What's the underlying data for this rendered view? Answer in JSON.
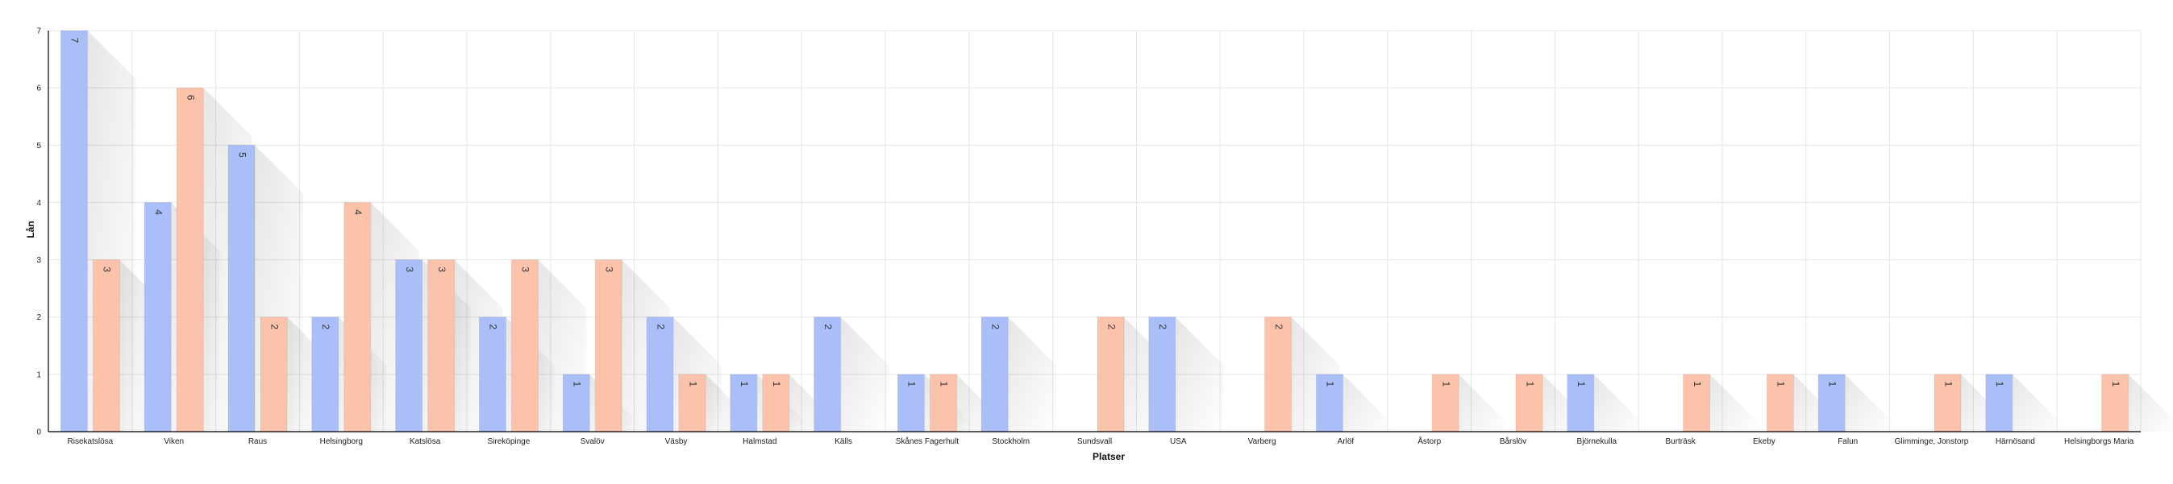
{
  "colors": {
    "series_a": "#aabffa",
    "series_b": "#fdc3aa",
    "grid": "#e6e6e6",
    "axis": "#000000"
  },
  "chart_data": {
    "type": "bar",
    "title": "",
    "xlabel": "Platser",
    "ylabel": "Lån",
    "ylim": [
      0,
      7
    ],
    "yticks": [
      0,
      1,
      2,
      3,
      4,
      5,
      6,
      7
    ],
    "grid": true,
    "legend": "none",
    "categories": [
      "Risekatslösa",
      "Viken",
      "Raus",
      "Helsingborg",
      "Katslösa",
      "Sireköpinge",
      "Svalöv",
      "Väsby",
      "Halmstad",
      "Källs",
      "Skånes Fagerhult",
      "Stockholm",
      "Sundsvall",
      "USA",
      "Varberg",
      "Arlöf",
      "Åstorp",
      "Bårslöv",
      "Björnekulla",
      "Burträsk",
      "Ekeby",
      "Falun",
      "Glimminge, Jonstorp",
      "Härnösand",
      "Helsingborgs Maria"
    ],
    "series": [
      {
        "values": [
          7,
          4,
          5,
          2,
          3,
          2,
          1,
          2,
          1,
          2,
          1,
          2,
          0,
          2,
          0,
          1,
          0,
          0,
          1,
          0,
          0,
          1,
          0,
          1,
          0
        ]
      },
      {
        "values": [
          3,
          6,
          2,
          4,
          3,
          3,
          3,
          1,
          1,
          0,
          1,
          0,
          2,
          0,
          2,
          0,
          1,
          1,
          0,
          1,
          1,
          0,
          1,
          0,
          1
        ]
      }
    ]
  }
}
